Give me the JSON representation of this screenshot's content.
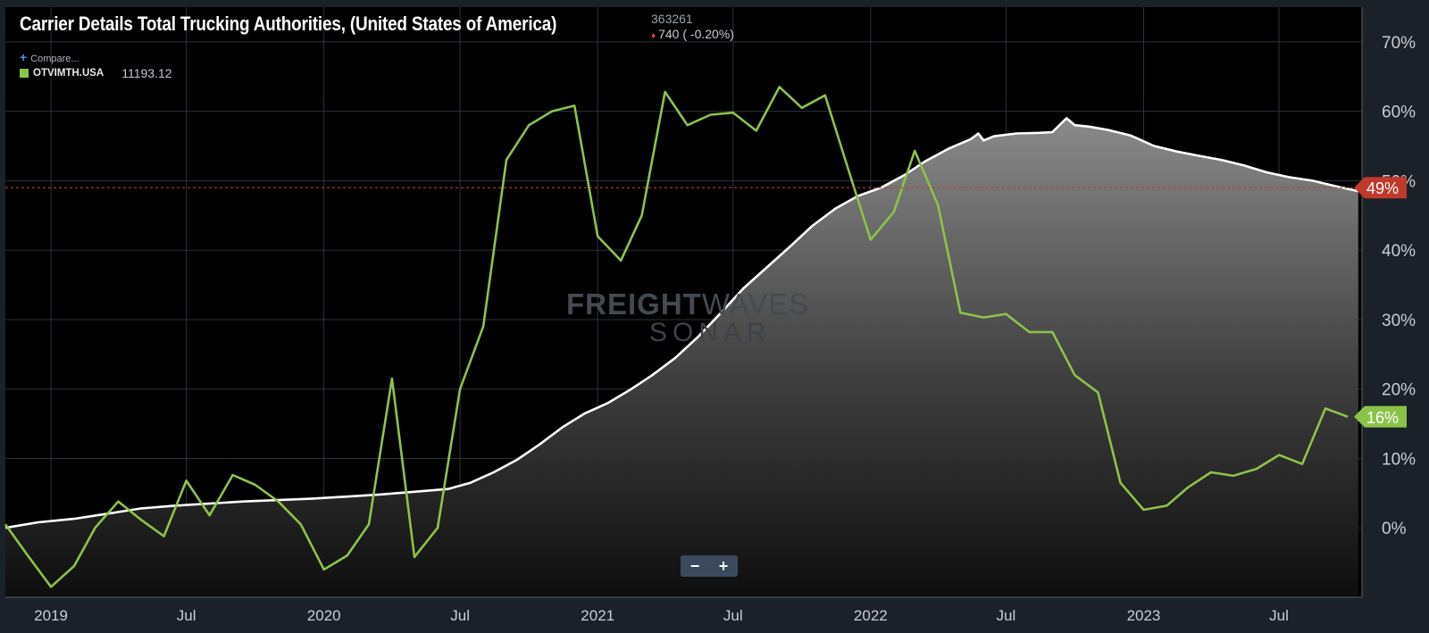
{
  "header": {
    "title": "Carrier Details Total Trucking Authorities, (United States of America)",
    "last_value": "363261",
    "change": "740 ( -0.20%)",
    "compare_label": "Compare...",
    "series_code": "OTVIMTH.USA",
    "series_value": "11193.12"
  },
  "watermark": {
    "line1_bold": "FREIGHT",
    "line1_light": "WAVES",
    "line2": "SONAR"
  },
  "controls": {
    "zoom_out": "−",
    "zoom_in": "+"
  },
  "colors": {
    "background": "#000000",
    "frame": "#1b2129",
    "area_line": "#ffffff",
    "green_line": "#8bc34a",
    "reference_line": "#c0392b",
    "badge_red": "#c0392b",
    "badge_green": "#8bc34a",
    "grid": "#2a323c"
  },
  "chart_data": {
    "type": "line",
    "ylim": [
      -10,
      75
    ],
    "y_ticks": [
      0,
      10,
      20,
      30,
      40,
      50,
      60,
      70
    ],
    "y_tick_labels": [
      "0%",
      "10%",
      "20%",
      "30%",
      "40%",
      "50%",
      "60%",
      "70%"
    ],
    "xlim": [
      "2018-11-01",
      "2023-10-20"
    ],
    "x_ticks": [
      "2019-01-01",
      "2019-07-01",
      "2020-01-01",
      "2020-07-01",
      "2021-01-01",
      "2021-07-01",
      "2022-01-01",
      "2022-07-01",
      "2023-01-01",
      "2023-07-01"
    ],
    "x_tick_labels": [
      "2019",
      "Jul",
      "2020",
      "Jul",
      "2021",
      "Jul",
      "2022",
      "Jul",
      "2023",
      "Jul"
    ],
    "reference_line": {
      "value": 49
    },
    "badges": [
      {
        "label": "49%",
        "value": 49,
        "color": "#c0392b"
      },
      {
        "label": "16%",
        "value": 16,
        "color": "#8bc34a"
      }
    ],
    "series": [
      {
        "style": "area",
        "color": "#ffffff",
        "points": [
          [
            "2018-11-01",
            0.0
          ],
          [
            "2018-12-15",
            0.8
          ],
          [
            "2019-02-01",
            1.3
          ],
          [
            "2019-03-15",
            2.0
          ],
          [
            "2019-05-01",
            2.8
          ],
          [
            "2019-06-15",
            3.2
          ],
          [
            "2019-08-01",
            3.5
          ],
          [
            "2019-09-15",
            3.8
          ],
          [
            "2019-11-01",
            4.0
          ],
          [
            "2019-12-15",
            4.2
          ],
          [
            "2020-02-01",
            4.5
          ],
          [
            "2020-03-15",
            4.8
          ],
          [
            "2020-05-01",
            5.2
          ],
          [
            "2020-06-15",
            5.6
          ],
          [
            "2020-07-15",
            6.5
          ],
          [
            "2020-08-15",
            8.0
          ],
          [
            "2020-09-15",
            9.8
          ],
          [
            "2020-10-15",
            12.0
          ],
          [
            "2020-11-15",
            14.5
          ],
          [
            "2020-12-15",
            16.5
          ],
          [
            "2021-01-15",
            18.0
          ],
          [
            "2021-02-15",
            20.0
          ],
          [
            "2021-03-15",
            22.0
          ],
          [
            "2021-04-15",
            24.5
          ],
          [
            "2021-05-15",
            27.5
          ],
          [
            "2021-06-15",
            31.0
          ],
          [
            "2021-07-15",
            34.5
          ],
          [
            "2021-08-15",
            37.5
          ],
          [
            "2021-09-15",
            40.5
          ],
          [
            "2021-10-15",
            43.5
          ],
          [
            "2021-11-15",
            46.0
          ],
          [
            "2021-12-15",
            47.8
          ],
          [
            "2022-01-15",
            49.0
          ],
          [
            "2022-02-15",
            50.8
          ],
          [
            "2022-03-15",
            52.8
          ],
          [
            "2022-04-15",
            54.6
          ],
          [
            "2022-05-15",
            56.0
          ],
          [
            "2022-05-25",
            56.8
          ],
          [
            "2022-06-01",
            55.8
          ],
          [
            "2022-06-15",
            56.4
          ],
          [
            "2022-07-15",
            56.8
          ],
          [
            "2022-08-15",
            56.9
          ],
          [
            "2022-09-01",
            57.0
          ],
          [
            "2022-09-20",
            59.0
          ],
          [
            "2022-10-01",
            58.0
          ],
          [
            "2022-10-20",
            57.8
          ],
          [
            "2022-11-15",
            57.3
          ],
          [
            "2022-12-15",
            56.5
          ],
          [
            "2023-01-15",
            55.0
          ],
          [
            "2023-02-15",
            54.2
          ],
          [
            "2023-03-15",
            53.6
          ],
          [
            "2023-04-15",
            53.0
          ],
          [
            "2023-05-15",
            52.2
          ],
          [
            "2023-06-15",
            51.2
          ],
          [
            "2023-07-15",
            50.5
          ],
          [
            "2023-08-15",
            50.0
          ],
          [
            "2023-09-15",
            49.2
          ],
          [
            "2023-10-15",
            48.5
          ]
        ]
      },
      {
        "style": "line",
        "color": "#8bc34a",
        "points": [
          [
            "2018-11-01",
            0.5
          ],
          [
            "2018-12-01",
            -4.0
          ],
          [
            "2019-01-01",
            -8.5
          ],
          [
            "2019-02-01",
            -5.5
          ],
          [
            "2019-03-01",
            0.0
          ],
          [
            "2019-04-01",
            3.8
          ],
          [
            "2019-05-01",
            1.2
          ],
          [
            "2019-06-01",
            -1.2
          ],
          [
            "2019-07-01",
            6.8
          ],
          [
            "2019-08-01",
            1.8
          ],
          [
            "2019-09-01",
            7.6
          ],
          [
            "2019-10-01",
            6.2
          ],
          [
            "2019-11-01",
            3.8
          ],
          [
            "2019-12-01",
            0.5
          ],
          [
            "2020-01-01",
            -6.0
          ],
          [
            "2020-02-01",
            -4.0
          ],
          [
            "2020-03-01",
            0.5
          ],
          [
            "2020-04-01",
            21.5
          ],
          [
            "2020-05-01",
            -4.2
          ],
          [
            "2020-06-01",
            0.0
          ],
          [
            "2020-07-01",
            20.0
          ],
          [
            "2020-08-01",
            29.0
          ],
          [
            "2020-09-01",
            53.0
          ],
          [
            "2020-10-01",
            58.0
          ],
          [
            "2020-11-01",
            60.0
          ],
          [
            "2020-12-01",
            60.8
          ],
          [
            "2021-01-01",
            42.0
          ],
          [
            "2021-02-01",
            38.5
          ],
          [
            "2021-03-01",
            45.0
          ],
          [
            "2021-04-01",
            62.8
          ],
          [
            "2021-05-01",
            58.0
          ],
          [
            "2021-06-01",
            59.5
          ],
          [
            "2021-07-01",
            59.8
          ],
          [
            "2021-08-01",
            57.2
          ],
          [
            "2021-09-01",
            63.5
          ],
          [
            "2021-10-01",
            60.5
          ],
          [
            "2021-11-01",
            62.3
          ],
          [
            "2021-12-01",
            52.0
          ],
          [
            "2022-01-01",
            41.5
          ],
          [
            "2022-02-01",
            45.5
          ],
          [
            "2022-03-01",
            54.3
          ],
          [
            "2022-04-01",
            46.5
          ],
          [
            "2022-05-01",
            31.0
          ],
          [
            "2022-06-01",
            30.3
          ],
          [
            "2022-07-01",
            30.8
          ],
          [
            "2022-08-01",
            28.2
          ],
          [
            "2022-09-01",
            28.2
          ],
          [
            "2022-10-01",
            22.0
          ],
          [
            "2022-11-01",
            19.5
          ],
          [
            "2022-12-01",
            6.5
          ],
          [
            "2023-01-01",
            2.6
          ],
          [
            "2023-02-01",
            3.2
          ],
          [
            "2023-03-01",
            5.8
          ],
          [
            "2023-04-01",
            8.0
          ],
          [
            "2023-05-01",
            7.5
          ],
          [
            "2023-06-01",
            8.5
          ],
          [
            "2023-07-01",
            10.5
          ],
          [
            "2023-08-01",
            9.2
          ],
          [
            "2023-09-01",
            17.2
          ],
          [
            "2023-10-01",
            16.0
          ]
        ]
      }
    ]
  }
}
